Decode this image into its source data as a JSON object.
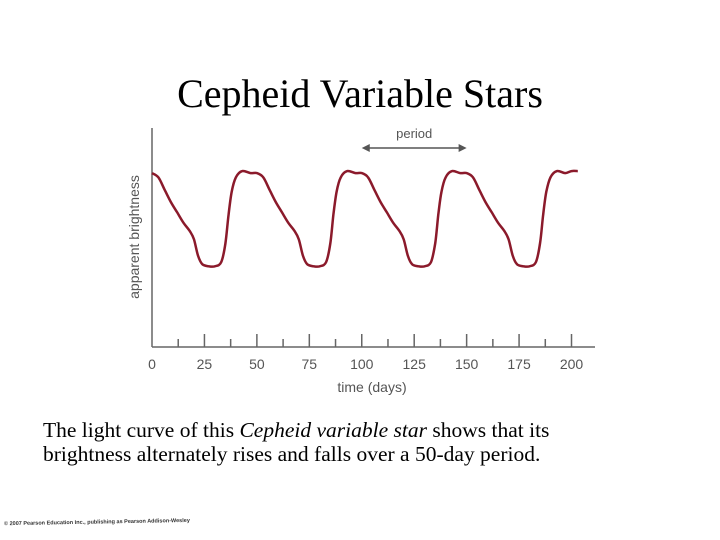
{
  "slide": {
    "title": "Cepheid Variable Stars",
    "caption_pre": "The light curve of this ",
    "caption_em": "Cepheid variable star",
    "caption_post": " shows that its brightness alternately rises and falls over a 50-day period.",
    "copyright": "© 2007 Pearson Education Inc., publishing as Pearson Addison-Wesley"
  },
  "chart_data": {
    "type": "line",
    "title": "",
    "xlabel": "time (days)",
    "ylabel": "apparent brightness",
    "xlim": [
      0,
      205
    ],
    "ylim": [
      0,
      1
    ],
    "xticks": [
      0,
      25,
      50,
      75,
      100,
      125,
      150,
      175,
      200
    ],
    "yticks_labeled": false,
    "grid": false,
    "annotation": {
      "label": "period",
      "x_start": 100,
      "x_end": 150
    },
    "series_color": "#8b1a2b",
    "x": [
      0,
      3,
      6,
      9,
      12,
      15,
      18,
      20,
      22,
      24,
      27,
      30,
      33,
      35,
      36.5,
      38,
      40,
      43,
      47,
      50,
      53,
      56,
      59,
      62,
      65,
      68,
      70,
      72,
      74,
      77,
      80,
      83,
      85,
      86.5,
      88,
      90,
      93,
      97,
      100,
      103,
      106,
      109,
      112,
      115,
      118,
      120,
      122,
      124,
      127,
      130,
      133,
      135,
      136.5,
      138,
      140,
      143,
      147,
      150,
      153,
      156,
      159,
      162,
      165,
      168,
      170,
      172,
      174,
      177,
      180,
      183,
      185,
      186.5,
      188,
      190,
      193,
      197,
      200,
      203
    ],
    "y": [
      0.84,
      0.82,
      0.76,
      0.7,
      0.65,
      0.6,
      0.56,
      0.52,
      0.44,
      0.4,
      0.39,
      0.39,
      0.41,
      0.5,
      0.64,
      0.75,
      0.82,
      0.85,
      0.84,
      0.84,
      0.82,
      0.76,
      0.7,
      0.65,
      0.6,
      0.56,
      0.52,
      0.44,
      0.4,
      0.39,
      0.39,
      0.41,
      0.5,
      0.64,
      0.75,
      0.82,
      0.85,
      0.84,
      0.84,
      0.82,
      0.76,
      0.7,
      0.65,
      0.6,
      0.56,
      0.52,
      0.44,
      0.4,
      0.39,
      0.39,
      0.41,
      0.5,
      0.64,
      0.75,
      0.82,
      0.85,
      0.84,
      0.84,
      0.82,
      0.76,
      0.7,
      0.65,
      0.6,
      0.56,
      0.52,
      0.44,
      0.4,
      0.39,
      0.39,
      0.41,
      0.5,
      0.64,
      0.75,
      0.82,
      0.85,
      0.84,
      0.85,
      0.85
    ]
  }
}
